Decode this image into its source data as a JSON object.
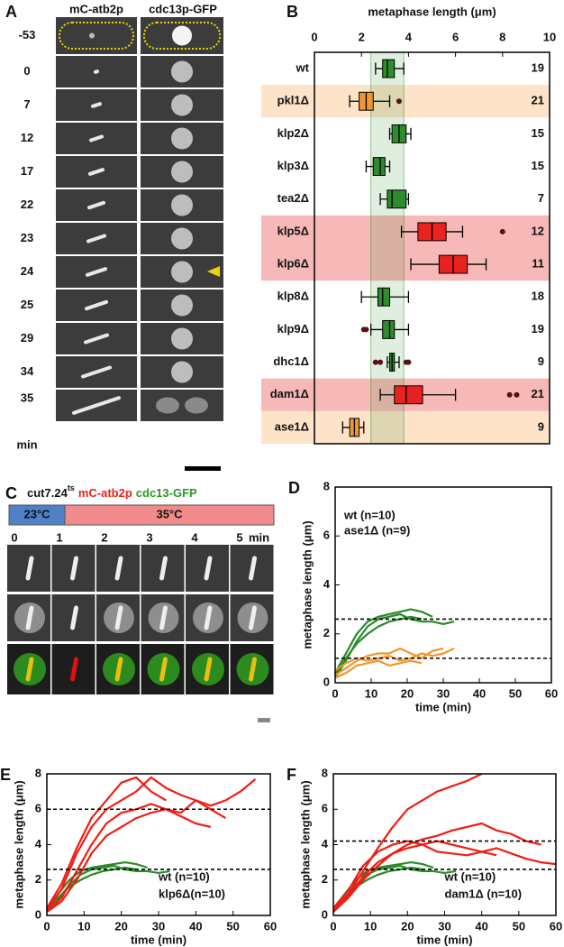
{
  "panel_a": {
    "label": "A",
    "headers": [
      "mC-atb2p",
      "cdc13p-GFP"
    ],
    "header_colors": [
      "#e8231f",
      "#2a9a2a"
    ],
    "times": [
      -53,
      0,
      7,
      12,
      17,
      22,
      23,
      24,
      25,
      29,
      34,
      35
    ],
    "unit": "min"
  },
  "panel_c": {
    "label": "C",
    "strain": "cut7.24",
    "allele": "ts",
    "markers": [
      "mC-atb2p",
      "cdc13-GFP"
    ],
    "marker_colors": [
      "#e8231f",
      "#2a9a2a"
    ],
    "temperatures": [
      "23°C",
      "35°C"
    ],
    "temperature_colors": [
      "#4f81c7",
      "#f28b8b"
    ],
    "times": [
      0,
      1,
      2,
      3,
      4,
      5
    ],
    "unit": "min"
  },
  "chart_data": [
    {
      "type": "box",
      "panel": "B",
      "title": "metaphase length (μm)",
      "categories": [
        "wt",
        "pkl1Δ",
        "klp2Δ",
        "klp3Δ",
        "tea2Δ",
        "klp5Δ",
        "klp6Δ",
        "klp8Δ",
        "klp9Δ",
        "dhc1Δ",
        "dam1Δ",
        "ase1Δ"
      ],
      "whisker_low": [
        2.6,
        1.5,
        3.2,
        2.2,
        2.8,
        3.7,
        4.1,
        2.0,
        2.4,
        3.1,
        2.8,
        1.2
      ],
      "q1": [
        2.9,
        1.9,
        3.3,
        2.5,
        3.1,
        4.4,
        5.3,
        2.7,
        2.9,
        3.2,
        3.4,
        1.5
      ],
      "median": [
        3.1,
        2.2,
        3.6,
        2.8,
        3.3,
        5.0,
        5.9,
        2.9,
        3.2,
        3.3,
        3.9,
        1.7
      ],
      "q3": [
        3.4,
        2.5,
        3.9,
        3.0,
        3.9,
        5.6,
        6.5,
        3.2,
        3.4,
        3.4,
        4.6,
        1.9
      ],
      "whisker_high": [
        3.8,
        3.2,
        4.1,
        3.2,
        4.0,
        6.3,
        7.3,
        4.0,
        4.0,
        3.6,
        6.0,
        2.1
      ],
      "outliers": [
        [],
        [
          3.6
        ],
        [],
        [],
        [],
        [
          8.0
        ],
        [],
        [],
        [
          2.1,
          2.2
        ],
        [
          2.6,
          2.8,
          3.9,
          4.0
        ],
        [
          8.3,
          8.6
        ],
        []
      ],
      "n": [
        19,
        21,
        15,
        15,
        7,
        12,
        11,
        18,
        19,
        9,
        21,
        9
      ],
      "box_colors": [
        "#2e8b2e",
        "#f0962e",
        "#2e8b2e",
        "#2e8b2e",
        "#2e8b2e",
        "#e8231f",
        "#e8231f",
        "#2e8b2e",
        "#2e8b2e",
        "#2e8b2e",
        "#e8231f",
        "#f0962e"
      ],
      "row_highlight": [
        null,
        "#fde3c8",
        null,
        null,
        null,
        "#f7b8b8",
        "#f7b8b8",
        null,
        null,
        null,
        "#f7b8b8",
        "#fde3c8"
      ],
      "band": [
        2.4,
        3.8
      ],
      "band_color": "#2e8b2e",
      "xlim": [
        0,
        10
      ],
      "xticks": [
        0,
        2,
        4,
        6,
        8,
        10
      ]
    },
    {
      "type": "line",
      "panel": "D",
      "xlabel": "time (min)",
      "ylabel": "metaphase length (μm)",
      "xlim": [
        0,
        60
      ],
      "ylim": [
        0,
        8
      ],
      "xticks": [
        0,
        10,
        20,
        30,
        40,
        50,
        60
      ],
      "yticks": [
        0,
        2,
        4,
        6,
        8
      ],
      "reference_lines": [
        2.6,
        1.0
      ],
      "legend": "upper left",
      "series": [
        {
          "name": "wt (n=10)",
          "color": "#2a8a2a",
          "x": [
            0,
            3,
            6,
            9,
            12,
            15,
            18,
            21,
            24,
            27,
            30,
            33
          ],
          "traces": [
            [
              0.4,
              1.2,
              2.0,
              2.5,
              2.7,
              2.8,
              2.9,
              3.0,
              2.9,
              2.7,
              null,
              null
            ],
            [
              0.2,
              0.9,
              1.7,
              2.3,
              2.6,
              2.7,
              2.8,
              2.6,
              2.5,
              2.5,
              2.4,
              2.5
            ],
            [
              0.3,
              1.0,
              1.6,
              2.0,
              2.3,
              2.5,
              2.6,
              2.7,
              2.6,
              null,
              null,
              null
            ]
          ]
        },
        {
          "name": "ase1Δ (n=9)",
          "color": "#f0962e",
          "x": [
            0,
            3,
            6,
            9,
            12,
            15,
            18,
            21,
            24,
            27,
            30,
            33
          ],
          "traces": [
            [
              0.3,
              0.6,
              0.9,
              1.1,
              1.2,
              1.2,
              1.4,
              1.2,
              1.0,
              1.3,
              1.4,
              null
            ],
            [
              0.5,
              0.8,
              1.0,
              0.9,
              1.0,
              1.1,
              0.9,
              1.0,
              1.2,
              1.1,
              1.2,
              1.4
            ],
            [
              0.2,
              0.4,
              0.7,
              0.8,
              0.9,
              0.7,
              0.8,
              0.9,
              0.8,
              null,
              null,
              null
            ]
          ]
        }
      ]
    },
    {
      "type": "line",
      "panel": "E",
      "xlabel": "time (min)",
      "ylabel": "metaphase length (μm)",
      "xlim": [
        0,
        60
      ],
      "ylim": [
        0,
        8
      ],
      "xticks": [
        0,
        10,
        20,
        30,
        40,
        50,
        60
      ],
      "yticks": [
        0,
        2,
        4,
        6,
        8
      ],
      "reference_lines": [
        6.0,
        2.6
      ],
      "legend": "lower right",
      "series": [
        {
          "name": "wt (n=10)",
          "color": "#2a8a2a",
          "x": [
            0,
            3,
            6,
            9,
            12,
            15,
            18,
            21,
            24,
            27,
            30,
            33
          ],
          "traces": [
            [
              0.4,
              1.2,
              2.0,
              2.5,
              2.7,
              2.8,
              2.9,
              3.0,
              2.9,
              2.7,
              null,
              null
            ],
            [
              0.2,
              0.9,
              1.7,
              2.3,
              2.6,
              2.7,
              2.8,
              2.6,
              2.5,
              2.5,
              2.4,
              2.5
            ],
            [
              0.3,
              1.0,
              1.6,
              2.0,
              2.3,
              2.5,
              2.6,
              2.7,
              2.6,
              null,
              null,
              null
            ]
          ]
        },
        {
          "name": "klp6Δ(n=10)",
          "color": "#f01d14",
          "x": [
            0,
            4,
            8,
            12,
            16,
            20,
            24,
            28,
            32,
            36,
            40,
            44,
            48,
            52,
            56
          ],
          "traces": [
            [
              0.3,
              1.5,
              3.5,
              5.0,
              6.0,
              6.5,
              7.0,
              7.8,
              7.2,
              6.8,
              6.5,
              6.2,
              6.5,
              7.0,
              7.7
            ],
            [
              0.2,
              1.0,
              2.5,
              4.0,
              5.2,
              5.8,
              6.0,
              6.3,
              6.0,
              5.8,
              6.5,
              6.0,
              5.5,
              null,
              null
            ],
            [
              0.4,
              1.8,
              3.8,
              5.5,
              6.5,
              7.5,
              7.8,
              7.0,
              6.5,
              null,
              null,
              null,
              null,
              null,
              null
            ],
            [
              0.2,
              0.8,
              2.0,
              3.5,
              4.5,
              5.0,
              5.5,
              5.8,
              6.0,
              5.6,
              5.2,
              5.0,
              null,
              null,
              null
            ]
          ]
        }
      ]
    },
    {
      "type": "line",
      "panel": "F",
      "xlabel": "time (min)",
      "ylabel": "metaphase length (μm)",
      "xlim": [
        0,
        60
      ],
      "ylim": [
        0,
        8
      ],
      "xticks": [
        0,
        10,
        20,
        30,
        40,
        50,
        60
      ],
      "yticks": [
        0,
        2,
        4,
        6,
        8
      ],
      "reference_lines": [
        4.2,
        2.6
      ],
      "legend": "lower right",
      "series": [
        {
          "name": "wt (n=10)",
          "color": "#2a8a2a",
          "x": [
            0,
            3,
            6,
            9,
            12,
            15,
            18,
            21,
            24,
            27,
            30,
            33
          ],
          "traces": [
            [
              0.4,
              1.2,
              2.0,
              2.5,
              2.7,
              2.8,
              2.9,
              3.0,
              2.9,
              2.7,
              null,
              null
            ],
            [
              0.2,
              0.9,
              1.7,
              2.3,
              2.6,
              2.7,
              2.8,
              2.6,
              2.5,
              2.5,
              2.4,
              2.5
            ],
            [
              0.3,
              1.0,
              1.6,
              2.0,
              2.3,
              2.5,
              2.6,
              2.7,
              2.6,
              null,
              null,
              null
            ]
          ]
        },
        {
          "name": "dam1Δ (n=10)",
          "color": "#f01d14",
          "x": [
            0,
            4,
            8,
            12,
            16,
            20,
            24,
            28,
            32,
            36,
            40,
            44,
            48,
            52,
            56,
            60
          ],
          "traces": [
            [
              0.3,
              1.2,
              2.5,
              3.8,
              5.0,
              6.0,
              6.5,
              7.0,
              7.3,
              7.6,
              8.0,
              null,
              null,
              null,
              null,
              null
            ],
            [
              0.2,
              1.0,
              2.2,
              3.0,
              3.5,
              4.0,
              4.3,
              4.5,
              4.8,
              5.0,
              5.2,
              4.8,
              4.6,
              4.2,
              4.0,
              null
            ],
            [
              0.3,
              1.0,
              2.0,
              2.8,
              3.5,
              3.8,
              4.0,
              4.2,
              4.0,
              3.8,
              3.6,
              3.8,
              3.5,
              3.2,
              3.0,
              2.9
            ],
            [
              0.4,
              1.4,
              2.8,
              3.6,
              4.0,
              4.2,
              4.0,
              3.6,
              3.5,
              3.4,
              3.6,
              3.4,
              null,
              null,
              null,
              null
            ]
          ]
        }
      ]
    }
  ]
}
